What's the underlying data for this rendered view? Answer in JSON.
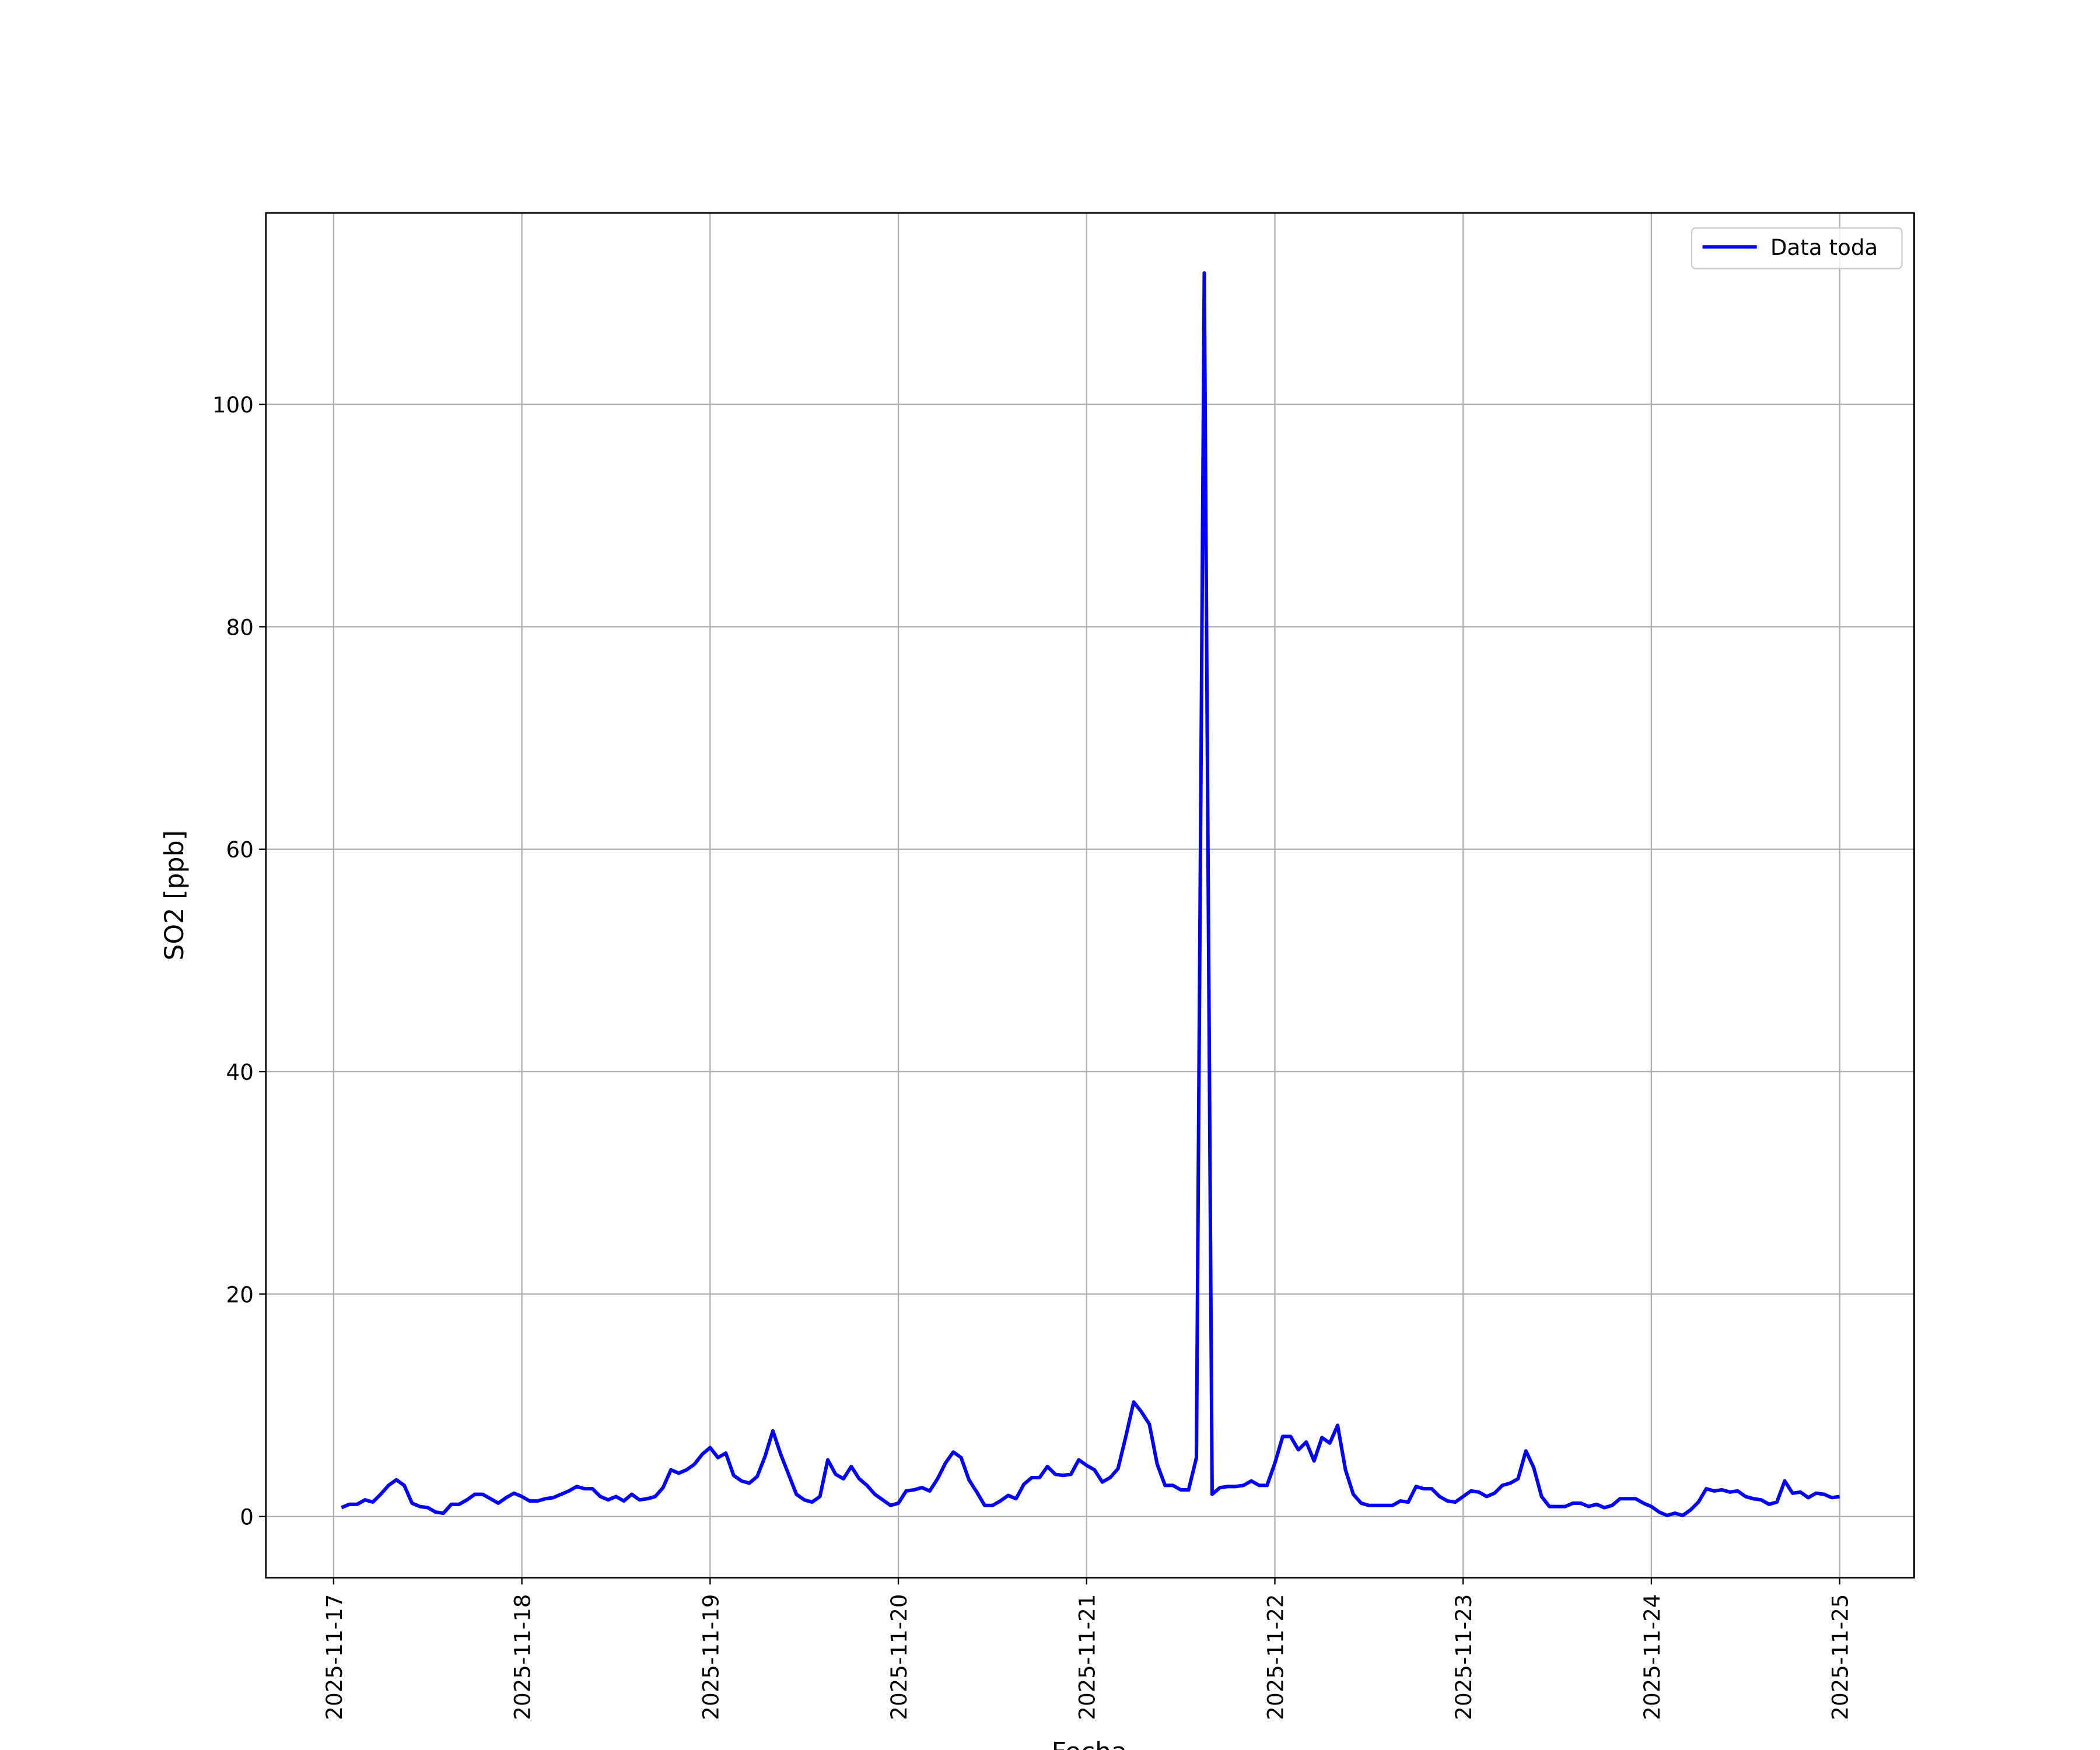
{
  "chart_data": {
    "type": "line",
    "xlabel": "Fecha",
    "ylabel": "SO2 [ppb]",
    "legend": "upper right",
    "grid": true,
    "xlim": [
      "2025-11-16 15:22",
      "2025-11-25 09:30"
    ],
    "ylim": [
      -5.5,
      117.2
    ],
    "yticks": [
      0,
      20,
      40,
      60,
      80,
      100
    ],
    "xticks": [
      "2025-11-17",
      "2025-11-18",
      "2025-11-19",
      "2025-11-20",
      "2025-11-21",
      "2025-11-22",
      "2025-11-23",
      "2025-11-24",
      "2025-11-25"
    ],
    "x": [
      "2025-11-17 01:00",
      "2025-11-17 02:00",
      "2025-11-17 03:00",
      "2025-11-17 04:00",
      "2025-11-17 05:00",
      "2025-11-17 06:00",
      "2025-11-17 07:00",
      "2025-11-17 08:00",
      "2025-11-17 09:00",
      "2025-11-17 10:00",
      "2025-11-17 11:00",
      "2025-11-17 12:00",
      "2025-11-17 13:00",
      "2025-11-17 14:00",
      "2025-11-17 15:00",
      "2025-11-17 16:00",
      "2025-11-17 17:00",
      "2025-11-17 18:00",
      "2025-11-17 19:00",
      "2025-11-17 20:00",
      "2025-11-17 21:00",
      "2025-11-17 22:00",
      "2025-11-17 23:00",
      "2025-11-18 00:00",
      "2025-11-18 01:00",
      "2025-11-18 02:00",
      "2025-11-18 03:00",
      "2025-11-18 04:00",
      "2025-11-18 05:00",
      "2025-11-18 06:00",
      "2025-11-18 07:00",
      "2025-11-18 08:00",
      "2025-11-18 09:00",
      "2025-11-18 10:00",
      "2025-11-18 11:00",
      "2025-11-18 12:00",
      "2025-11-18 13:00",
      "2025-11-18 14:00",
      "2025-11-18 15:00",
      "2025-11-18 16:00",
      "2025-11-18 17:00",
      "2025-11-18 18:00",
      "2025-11-18 19:00",
      "2025-11-18 20:00",
      "2025-11-18 21:00",
      "2025-11-18 22:00",
      "2025-11-18 23:00",
      "2025-11-19 00:00",
      "2025-11-19 01:00",
      "2025-11-19 02:00",
      "2025-11-19 03:00",
      "2025-11-19 04:00",
      "2025-11-19 05:00",
      "2025-11-19 06:00",
      "2025-11-19 07:00",
      "2025-11-19 08:00",
      "2025-11-19 09:00",
      "2025-11-19 10:00",
      "2025-11-19 11:00",
      "2025-11-19 12:00",
      "2025-11-19 13:00",
      "2025-11-19 14:00",
      "2025-11-19 15:00",
      "2025-11-19 16:00",
      "2025-11-19 17:00",
      "2025-11-19 18:00",
      "2025-11-19 19:00",
      "2025-11-19 20:00",
      "2025-11-19 21:00",
      "2025-11-19 22:00",
      "2025-11-19 23:00",
      "2025-11-20 00:00",
      "2025-11-20 01:00",
      "2025-11-20 02:00",
      "2025-11-20 03:00",
      "2025-11-20 04:00",
      "2025-11-20 05:00",
      "2025-11-20 06:00",
      "2025-11-20 07:00",
      "2025-11-20 08:00",
      "2025-11-20 09:00",
      "2025-11-20 10:00",
      "2025-11-20 11:00",
      "2025-11-20 12:00",
      "2025-11-20 13:00",
      "2025-11-20 14:00",
      "2025-11-20 15:00",
      "2025-11-20 16:00",
      "2025-11-20 17:00",
      "2025-11-20 18:00",
      "2025-11-20 19:00",
      "2025-11-20 20:00",
      "2025-11-20 21:00",
      "2025-11-20 22:00",
      "2025-11-20 23:00",
      "2025-11-21 00:00",
      "2025-11-21 01:00",
      "2025-11-21 02:00",
      "2025-11-21 03:00",
      "2025-11-21 04:00",
      "2025-11-21 05:00",
      "2025-11-21 06:00",
      "2025-11-21 07:00",
      "2025-11-21 08:00",
      "2025-11-21 09:00",
      "2025-11-21 10:00",
      "2025-11-21 11:00",
      "2025-11-21 12:00",
      "2025-11-21 13:00",
      "2025-11-21 14:00",
      "2025-11-21 15:00",
      "2025-11-21 16:00",
      "2025-11-21 17:00",
      "2025-11-21 18:00",
      "2025-11-21 19:00",
      "2025-11-21 20:00",
      "2025-11-21 21:00",
      "2025-11-21 22:00",
      "2025-11-21 23:00",
      "2025-11-22 00:00",
      "2025-11-22 01:00",
      "2025-11-22 02:00",
      "2025-11-22 03:00",
      "2025-11-22 04:00",
      "2025-11-22 05:00",
      "2025-11-22 06:00",
      "2025-11-22 07:00",
      "2025-11-22 08:00",
      "2025-11-22 09:00",
      "2025-11-22 10:00",
      "2025-11-22 11:00",
      "2025-11-22 12:00",
      "2025-11-22 13:00",
      "2025-11-22 14:00",
      "2025-11-22 15:00",
      "2025-11-22 16:00",
      "2025-11-22 17:00",
      "2025-11-22 18:00",
      "2025-11-22 19:00",
      "2025-11-22 20:00",
      "2025-11-22 21:00",
      "2025-11-22 22:00",
      "2025-11-22 23:00",
      "2025-11-23 00:00",
      "2025-11-23 01:00",
      "2025-11-23 02:00",
      "2025-11-23 03:00",
      "2025-11-23 04:00",
      "2025-11-23 05:00",
      "2025-11-23 06:00",
      "2025-11-23 07:00",
      "2025-11-23 08:00",
      "2025-11-23 09:00",
      "2025-11-23 10:00",
      "2025-11-23 11:00",
      "2025-11-23 12:00",
      "2025-11-23 13:00",
      "2025-11-23 14:00",
      "2025-11-23 15:00",
      "2025-11-23 16:00",
      "2025-11-23 17:00",
      "2025-11-23 18:00",
      "2025-11-23 19:00",
      "2025-11-23 20:00",
      "2025-11-23 21:00",
      "2025-11-23 22:00",
      "2025-11-23 23:00",
      "2025-11-24 00:00",
      "2025-11-24 01:00",
      "2025-11-24 02:00",
      "2025-11-24 03:00",
      "2025-11-24 04:00",
      "2025-11-24 05:00",
      "2025-11-24 06:00",
      "2025-11-24 07:00",
      "2025-11-24 08:00",
      "2025-11-24 09:00",
      "2025-11-24 10:00",
      "2025-11-24 11:00",
      "2025-11-24 12:00",
      "2025-11-24 13:00",
      "2025-11-24 14:00",
      "2025-11-24 15:00",
      "2025-11-24 16:00",
      "2025-11-24 17:00",
      "2025-11-24 18:00",
      "2025-11-24 19:00",
      "2025-11-24 20:00",
      "2025-11-24 21:00",
      "2025-11-24 22:00",
      "2025-11-24 23:00",
      "2025-11-25 00:00"
    ],
    "series": [
      {
        "name": "Data toda",
        "color": "#0000ff",
        "values": [
          0.8,
          1.1,
          1.1,
          1.5,
          1.3,
          2.0,
          2.8,
          3.3,
          2.8,
          1.2,
          0.9,
          0.8,
          0.4,
          0.3,
          1.1,
          1.1,
          1.5,
          2.0,
          2.0,
          1.6,
          1.2,
          1.7,
          2.1,
          1.8,
          1.4,
          1.4,
          1.6,
          1.7,
          2.0,
          2.3,
          2.7,
          2.5,
          2.5,
          1.8,
          1.5,
          1.8,
          1.4,
          2.0,
          1.5,
          1.6,
          1.8,
          2.6,
          4.2,
          3.9,
          4.2,
          4.7,
          5.6,
          6.2,
          5.3,
          5.7,
          3.7,
          3.2,
          3.0,
          3.6,
          5.4,
          7.7,
          5.6,
          3.8,
          2.0,
          1.5,
          1.3,
          1.8,
          5.1,
          3.8,
          3.4,
          4.5,
          3.4,
          2.8,
          2.0,
          1.5,
          1.0,
          1.2,
          2.3,
          2.4,
          2.6,
          2.3,
          3.4,
          4.8,
          5.8,
          5.3,
          3.3,
          2.2,
          1.0,
          1.0,
          1.4,
          1.9,
          1.6,
          2.9,
          3.5,
          3.5,
          4.5,
          3.8,
          3.7,
          3.8,
          5.1,
          4.6,
          4.2,
          3.1,
          3.5,
          4.3,
          7.2,
          10.3,
          9.4,
          8.3,
          4.7,
          2.8,
          2.8,
          2.4,
          2.4,
          5.3,
          111.8,
          2.0,
          2.6,
          2.7,
          2.7,
          2.8,
          3.2,
          2.8,
          2.8,
          4.8,
          7.2,
          7.2,
          6.0,
          6.7,
          5.0,
          7.1,
          6.6,
          8.2,
          4.2,
          2.0,
          1.2,
          1.0,
          1.0,
          1.0,
          1.0,
          1.4,
          1.3,
          2.7,
          2.5,
          2.5,
          1.8,
          1.4,
          1.3,
          1.8,
          2.3,
          2.2,
          1.8,
          2.1,
          2.8,
          3.0,
          3.4,
          5.9,
          4.4,
          1.8,
          0.9,
          0.9,
          0.9,
          1.2,
          1.2,
          0.9,
          1.1,
          0.8,
          1.0,
          1.6,
          1.6,
          1.6,
          1.2,
          0.9,
          0.4,
          0.1,
          0.3,
          0.1,
          0.6,
          1.3,
          2.5,
          2.3,
          2.4,
          2.2,
          2.3,
          1.8,
          1.6,
          1.5,
          1.1,
          1.3,
          3.2,
          2.1,
          2.2,
          1.7,
          2.1,
          2.0,
          1.7,
          1.8
        ]
      }
    ]
  }
}
